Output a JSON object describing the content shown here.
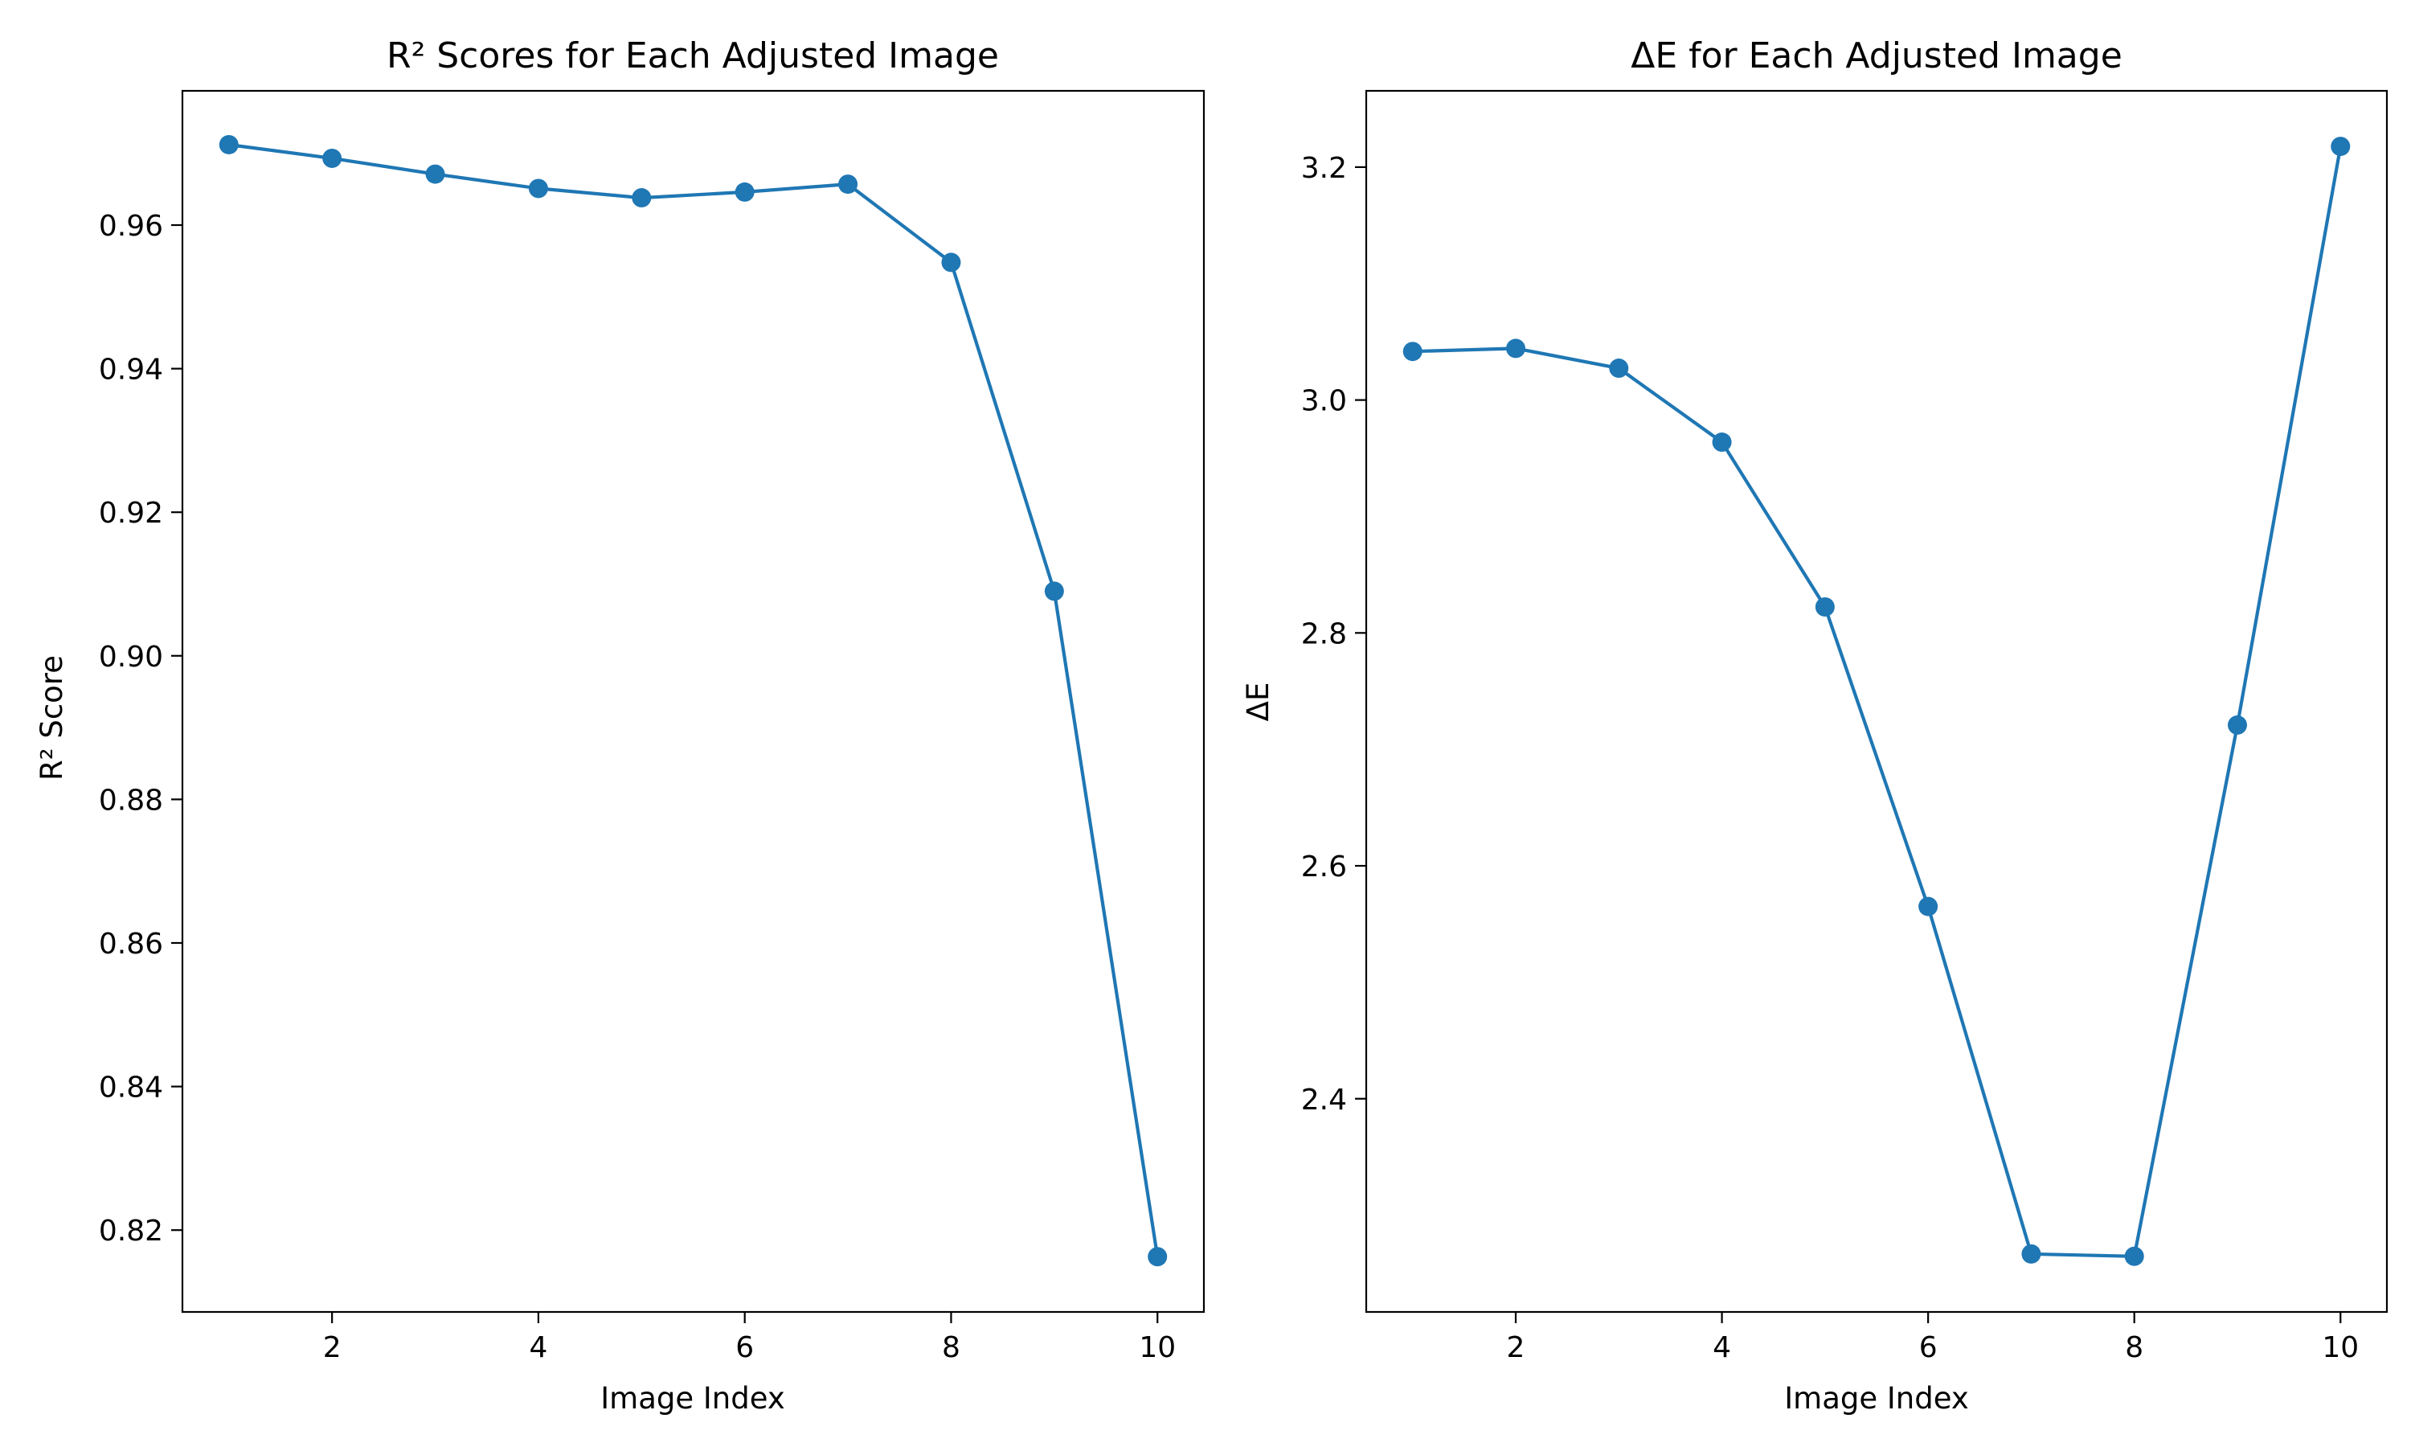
{
  "chart_data": [
    {
      "type": "line",
      "title": "R² Scores for Each Adjusted Image",
      "xlabel": "Image Index",
      "ylabel": "R² Score",
      "x": [
        1,
        2,
        3,
        4,
        5,
        6,
        7,
        8,
        9,
        10
      ],
      "series": [
        {
          "values": [
            0.9712,
            0.9693,
            0.9671,
            0.9651,
            0.9638,
            0.9646,
            0.9657,
            0.9548,
            0.909,
            0.8163
          ]
        }
      ],
      "xlim": [
        0.55,
        10.45
      ],
      "ylim": [
        0.8086,
        0.9787
      ],
      "xticks": [
        2,
        4,
        6,
        8,
        10
      ],
      "xtick_labels": [
        "2",
        "4",
        "6",
        "8",
        "10"
      ],
      "yticks": [
        0.82,
        0.84,
        0.86,
        0.88,
        0.9,
        0.92,
        0.94,
        0.96
      ],
      "ytick_labels": [
        "0.82",
        "0.84",
        "0.86",
        "0.88",
        "0.90",
        "0.92",
        "0.94",
        "0.96"
      ],
      "grid": false,
      "color": "#1f77b4"
    },
    {
      "type": "line",
      "title": "ΔE for Each Adjusted Image",
      "xlabel": "Image Index",
      "ylabel": "ΔE",
      "x": [
        1,
        2,
        3,
        4,
        5,
        6,
        7,
        8,
        9,
        10
      ],
      "series": [
        {
          "values": [
            3.0417,
            3.0443,
            3.0273,
            2.9638,
            2.8223,
            2.5651,
            2.2667,
            2.2647,
            2.7209,
            3.2178
          ]
        }
      ],
      "xlim": [
        0.55,
        10.45
      ],
      "ylim": [
        2.2169,
        3.2655
      ],
      "xticks": [
        2,
        4,
        6,
        8,
        10
      ],
      "xtick_labels": [
        "2",
        "4",
        "6",
        "8",
        "10"
      ],
      "yticks": [
        2.4,
        2.6,
        2.8,
        3.0,
        3.2
      ],
      "ytick_labels": [
        "2.4",
        "2.6",
        "2.8",
        "3.0",
        "3.2"
      ],
      "grid": false,
      "color": "#1f77b4"
    }
  ]
}
